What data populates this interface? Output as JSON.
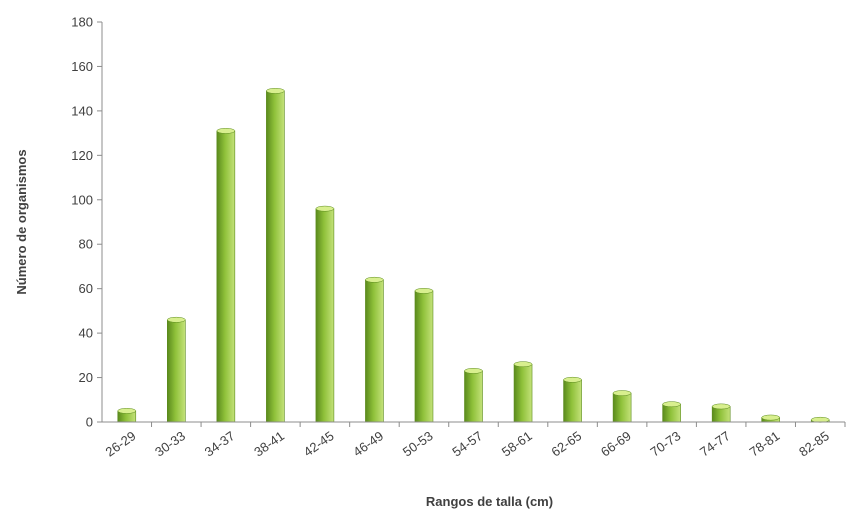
{
  "chart_data": {
    "type": "bar",
    "title": "",
    "xlabel": "Rangos de talla (cm)",
    "ylabel": "Número de organismos",
    "categories": [
      "26-29",
      "30-33",
      "34-37",
      "38-41",
      "42-45",
      "46-49",
      "50-53",
      "54-57",
      "58-61",
      "62-65",
      "66-69",
      "70-73",
      "74-77",
      "78-81",
      "82-85"
    ],
    "values": [
      5,
      46,
      131,
      149,
      96,
      64,
      59,
      23,
      26,
      19,
      13,
      8,
      7,
      2,
      1
    ],
    "ylim": [
      0,
      180
    ],
    "yticks": [
      0,
      20,
      40,
      60,
      80,
      100,
      120,
      140,
      160,
      180
    ],
    "grid": false,
    "legend": "none",
    "colors": {
      "bar_dark": "#5a8a1c",
      "bar_mid": "#8fc13a",
      "bar_light": "#c4e27a",
      "bar_top": "#d8ef8e",
      "axis": "#8c8c8c",
      "text": "#404040"
    }
  }
}
